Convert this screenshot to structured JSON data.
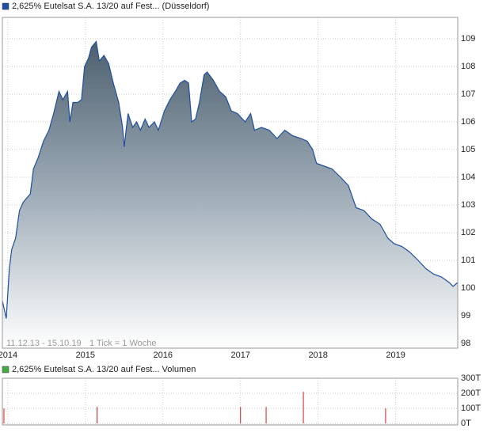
{
  "chart_data": [
    {
      "type": "area",
      "series": [
        {
          "name": "2,625% Eutelsat S.A. 13/20 auf Fest... (Düsseldorf)",
          "color": "#1f4fa0",
          "x": [
            2013.93,
            2013.98,
            2014.02,
            2014.05,
            2014.1,
            2014.15,
            2014.2,
            2014.29,
            2014.33,
            2014.39,
            2014.46,
            2014.53,
            2014.59,
            2014.66,
            2014.71,
            2014.77,
            2014.8,
            2014.84,
            2014.9,
            2014.95,
            2014.99,
            2015.04,
            2015.08,
            2015.14,
            2015.18,
            2015.24,
            2015.3,
            2015.36,
            2015.43,
            2015.48,
            2015.5,
            2015.55,
            2015.61,
            2015.66,
            2015.71,
            2015.77,
            2015.82,
            2015.89,
            2015.94,
            2016.02,
            2016.09,
            2016.16,
            2016.22,
            2016.28,
            2016.33,
            2016.37,
            2016.42,
            2016.47,
            2016.53,
            2016.57,
            2016.65,
            2016.73,
            2016.81,
            2016.88,
            2016.96,
            2017.06,
            2017.13,
            2017.18,
            2017.27,
            2017.37,
            2017.47,
            2017.57,
            2017.67,
            2017.78,
            2017.86,
            2017.93,
            2017.98,
            2018.08,
            2018.18,
            2018.29,
            2018.39,
            2018.44,
            2018.49,
            2018.59,
            2018.69,
            2018.8,
            2018.9,
            2018.98,
            2019.08,
            2019.18,
            2019.29,
            2019.39,
            2019.49,
            2019.59,
            2019.69,
            2019.74,
            2019.8
          ],
          "values": [
            99.54,
            98.9,
            100.7,
            101.4,
            101.8,
            102.8,
            103.1,
            103.4,
            104.3,
            104.7,
            105.3,
            105.7,
            106.3,
            107.1,
            106.8,
            107.1,
            106.0,
            106.7,
            106.7,
            106.8,
            108.0,
            108.3,
            108.7,
            108.9,
            108.2,
            108.4,
            108.1,
            107.4,
            106.7,
            105.8,
            105.1,
            106.3,
            105.8,
            106.0,
            105.7,
            106.1,
            105.8,
            106.0,
            105.7,
            106.4,
            106.8,
            107.1,
            107.4,
            107.5,
            107.4,
            106.0,
            106.1,
            106.7,
            107.7,
            107.8,
            107.5,
            107.1,
            106.9,
            106.4,
            106.3,
            106.0,
            106.3,
            105.7,
            105.8,
            105.7,
            105.4,
            105.7,
            105.5,
            105.4,
            105.3,
            105.0,
            104.5,
            104.4,
            104.3,
            104.0,
            103.7,
            103.3,
            102.9,
            102.8,
            102.5,
            102.3,
            101.8,
            101.6,
            101.5,
            101.3,
            101.0,
            100.7,
            100.5,
            100.4,
            100.2,
            100.06,
            100.2
          ]
        }
      ],
      "xlim": [
        2013.93,
        2019.8
      ],
      "xticks": [
        2014,
        2015,
        2016,
        2017,
        2018,
        2019
      ],
      "ylim": [
        97.83,
        109.77
      ],
      "yticks": [
        98,
        99,
        100,
        101,
        102,
        103,
        104,
        105,
        106,
        107,
        108,
        109
      ],
      "grid": true,
      "annotations": [
        "11.12.13 - 15.10.19",
        "1 Tick = 1 Woche"
      ]
    },
    {
      "type": "bar",
      "series": [
        {
          "name": "2,625% Eutelsat S.A. 13/20 auf Fest... Volumen",
          "color": "#cc2222",
          "x": [
            2013.95,
            2015.15,
            2017.0,
            2017.33,
            2017.81,
            2018.87
          ],
          "values": [
            100,
            110,
            110,
            110,
            210,
            100
          ]
        }
      ],
      "legend_color": "#44aa44",
      "xlim": [
        2013.93,
        2019.8
      ],
      "ylim": [
        -10,
        300
      ],
      "yticks": [
        {
          "value": 0,
          "label": "0T"
        },
        {
          "value": 100,
          "label": "100T"
        },
        {
          "value": 200,
          "label": "200T"
        },
        {
          "value": 300,
          "label": "300T"
        }
      ],
      "grid": true
    }
  ]
}
